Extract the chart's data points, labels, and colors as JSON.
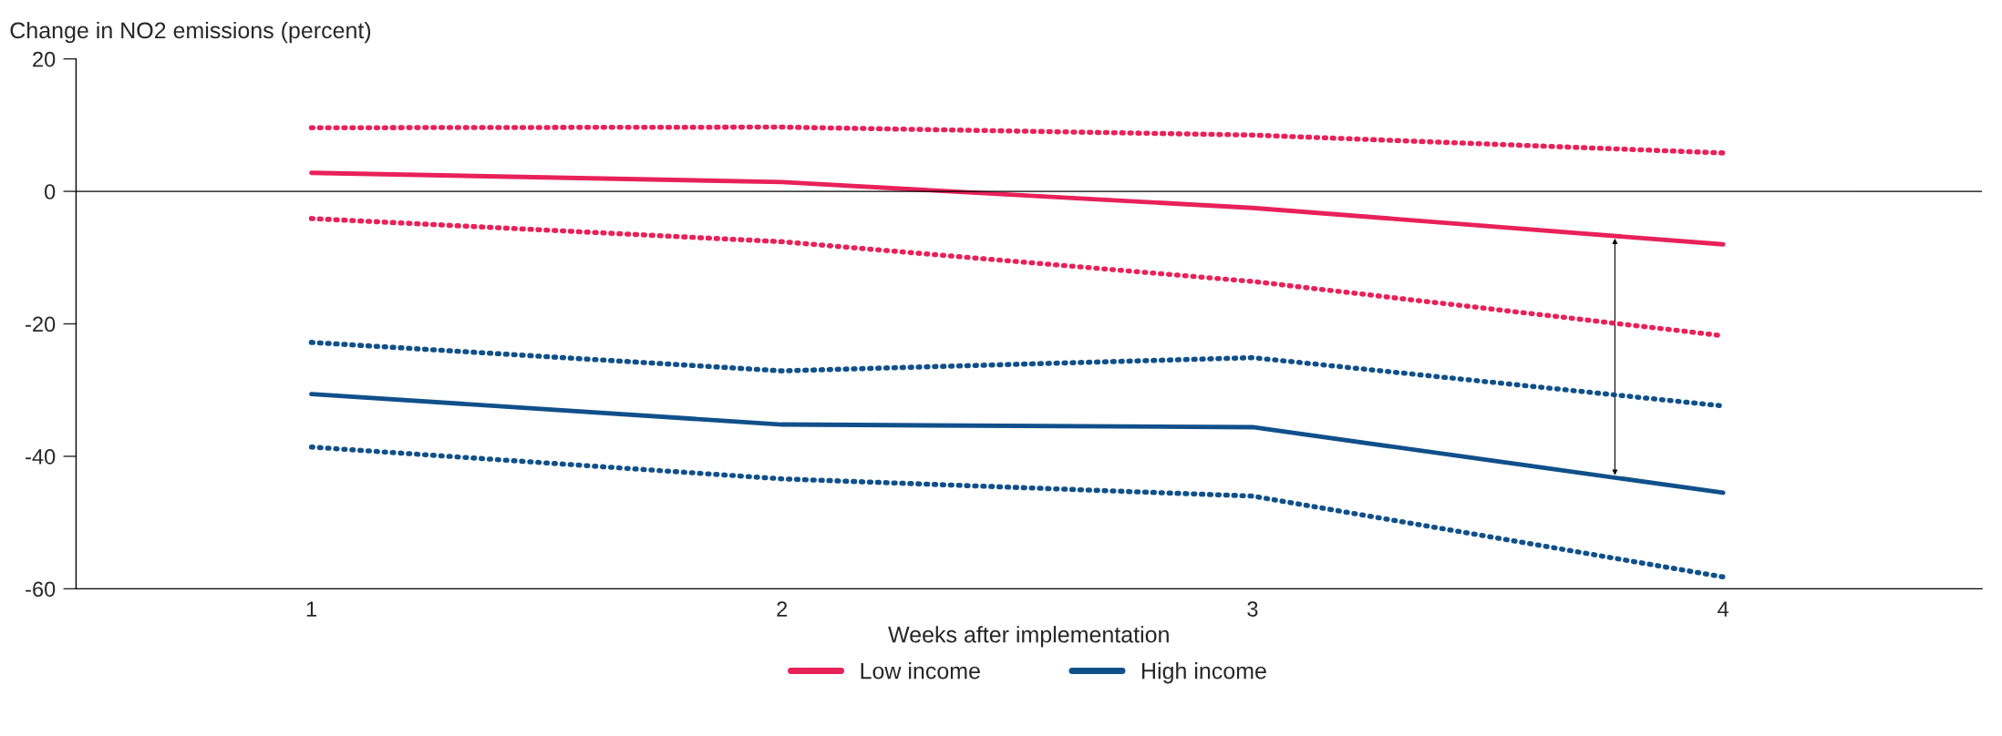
{
  "chart_data": {
    "type": "line",
    "xlabel": "Weeks after implementation",
    "ylabel": "Change in NO2 emissions (percent)",
    "x": [
      1,
      2,
      3,
      4
    ],
    "xlim": [
      0.5,
      4.55
    ],
    "xticks": [
      1,
      2,
      3,
      4
    ],
    "ylim": [
      -60,
      20
    ],
    "yticks": [
      -60,
      -40,
      -20,
      0,
      20
    ],
    "series": [
      {
        "name": "Low income",
        "color": "#e8215a",
        "values": [
          2.8,
          1.4,
          -2.5,
          -8.0
        ]
      },
      {
        "color": "#e8215a",
        "line_style": "dotted",
        "values": [
          9.6,
          9.7,
          8.5,
          5.8
        ]
      },
      {
        "color": "#e8215a",
        "line_style": "dotted",
        "values": [
          -4.1,
          -7.6,
          -13.6,
          -21.8
        ]
      },
      {
        "name": "High income",
        "color": "#10508a",
        "values": [
          -30.6,
          -35.2,
          -35.6,
          -45.5
        ]
      },
      {
        "color": "#10508a",
        "line_style": "dotted",
        "values": [
          -22.8,
          -27.1,
          -25.1,
          -32.4
        ]
      },
      {
        "color": "#10508a",
        "line_style": "dotted",
        "values": [
          -38.6,
          -43.4,
          -46.0,
          -58.2
        ]
      }
    ],
    "ref_lines": [
      {
        "axis": "y",
        "value": 0,
        "color": "#000000",
        "line_style": "solid"
      }
    ],
    "grid": false,
    "legend": "bottom",
    "line_style": "solid",
    "marker": "none"
  }
}
